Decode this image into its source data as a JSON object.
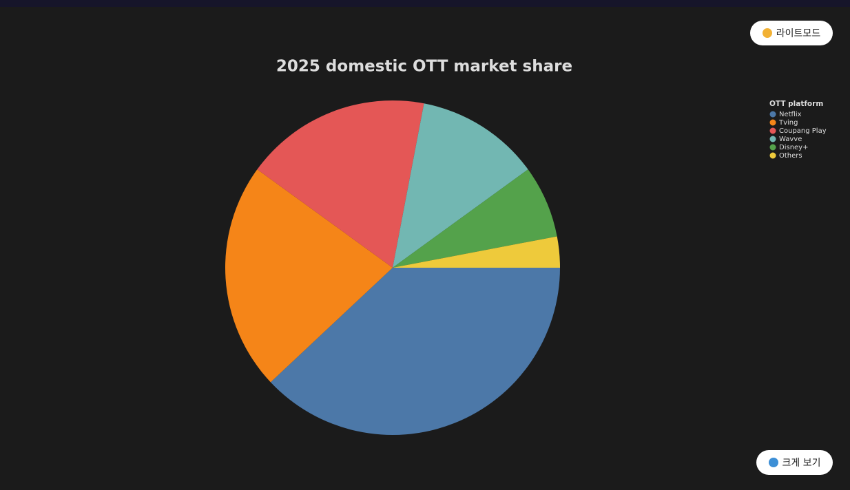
{
  "ui": {
    "theme_button": "라이트모드",
    "zoom_button": "크게 보기"
  },
  "chart_data": {
    "type": "pie",
    "title": "2025 domestic OTT market share",
    "legend_title": "OTT platform",
    "legend": "top-right",
    "categories": [
      "Netflix",
      "Tving",
      "Coupang Play",
      "Wavve",
      "Disney+",
      "Others"
    ],
    "values": [
      38,
      22,
      18,
      12,
      7,
      3
    ],
    "colors": [
      "#4c78a8",
      "#f58518",
      "#e45756",
      "#72b7b2",
      "#54a24b",
      "#eeca3b"
    ]
  }
}
